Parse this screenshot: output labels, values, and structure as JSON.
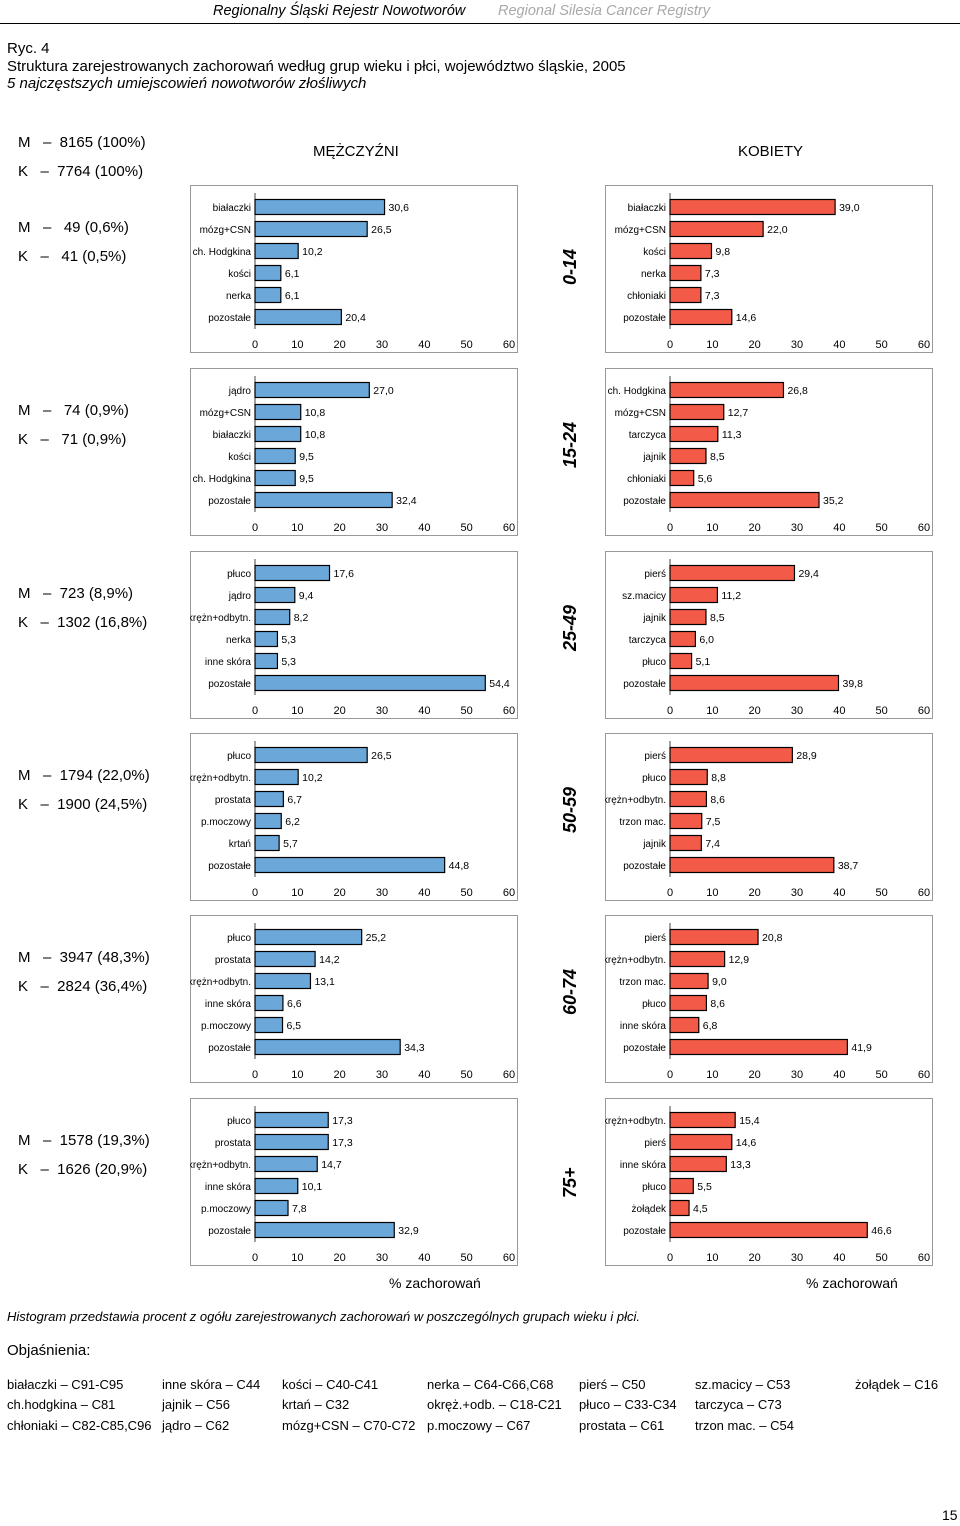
{
  "header": {
    "title_pl": "Regionalny Śląski Rejestr Nowotworów",
    "title_en": "Regional Silesia Cancer Registry"
  },
  "figure": {
    "number": "Ryc. 4",
    "title": "Struktura zarejestrowanych zachorowań według grup wieku i płci, województwo śląskie, 2005",
    "subtitle": "5 najczęstszych umiejscowień nowotworów złośliwych"
  },
  "totals": {
    "m": "M   –  8165 (100%)",
    "k": "K   –  7764 (100%)"
  },
  "columns": {
    "men": "MĘŻCZYŹNI",
    "women": "KOBIETY"
  },
  "axis": {
    "ticks": [
      "0",
      "10",
      "20",
      "30",
      "40",
      "50",
      "60"
    ],
    "xlabel": "% zachorowań"
  },
  "colors": {
    "men_bar": "#6ba7d9",
    "women_bar": "#f35a48"
  },
  "chart_data": [
    {
      "group": "0-14",
      "m_count": "M   –   49 (0,6%)",
      "k_count": "K   –   41 (0,5%)",
      "men": {
        "type": "bar",
        "xlim": [
          0,
          60
        ],
        "categories": [
          "białaczki",
          "mózg+CSN",
          "ch. Hodgkina",
          "kości",
          "nerka",
          "pozostałe"
        ],
        "values": [
          30.6,
          26.5,
          10.2,
          6.1,
          6.1,
          20.4
        ],
        "labels": [
          "30,6",
          "26,5",
          "10,2",
          "6,1",
          "6,1",
          "20,4"
        ]
      },
      "women": {
        "type": "bar",
        "xlim": [
          0,
          60
        ],
        "categories": [
          "białaczki",
          "mózg+CSN",
          "kości",
          "nerka",
          "chłoniaki",
          "pozostałe"
        ],
        "values": [
          39.0,
          22.0,
          9.8,
          7.3,
          7.3,
          14.6
        ],
        "labels": [
          "39,0",
          "22,0",
          "9,8",
          "7,3",
          "7,3",
          "14,6"
        ]
      }
    },
    {
      "group": "15-24",
      "m_count": "M   –   74 (0,9%)",
      "k_count": "K   –   71 (0,9%)",
      "men": {
        "type": "bar",
        "xlim": [
          0,
          60
        ],
        "categories": [
          "jądro",
          "mózg+CSN",
          "białaczki",
          "kości",
          "ch. Hodgkina",
          "pozostałe"
        ],
        "values": [
          27.0,
          10.8,
          10.8,
          9.5,
          9.5,
          32.4
        ],
        "labels": [
          "27,0",
          "10,8",
          "10,8",
          "9,5",
          "9,5",
          "32,4"
        ]
      },
      "women": {
        "type": "bar",
        "xlim": [
          0,
          60
        ],
        "categories": [
          "ch. Hodgkina",
          "mózg+CSN",
          "tarczyca",
          "jajnik",
          "chłoniaki",
          "pozostałe"
        ],
        "values": [
          26.8,
          12.7,
          11.3,
          8.5,
          5.6,
          35.2
        ],
        "labels": [
          "26,8",
          "12,7",
          "11,3",
          "8,5",
          "5,6",
          "35,2"
        ]
      }
    },
    {
      "group": "25-49",
      "m_count": "M   –  723 (8,9%)",
      "k_count": "K   –  1302 (16,8%)",
      "men": {
        "type": "bar",
        "xlim": [
          0,
          60
        ],
        "categories": [
          "płuco",
          "jądro",
          "okrężn+odbytn.",
          "nerka",
          "inne skóra",
          "pozostałe"
        ],
        "values": [
          17.6,
          9.4,
          8.2,
          5.3,
          5.3,
          54.4
        ],
        "labels": [
          "17,6",
          "9,4",
          "8,2",
          "5,3",
          "5,3",
          "54,4"
        ]
      },
      "women": {
        "type": "bar",
        "xlim": [
          0,
          60
        ],
        "categories": [
          "pierś",
          "sz.macicy",
          "jajnik",
          "tarczyca",
          "płuco",
          "pozostałe"
        ],
        "values": [
          29.4,
          11.2,
          8.5,
          6.0,
          5.1,
          39.8
        ],
        "labels": [
          "29,4",
          "11,2",
          "8,5",
          "6,0",
          "5,1",
          "39,8"
        ]
      }
    },
    {
      "group": "50-59",
      "m_count": "M   –  1794 (22,0%)",
      "k_count": "K   –  1900 (24,5%)",
      "men": {
        "type": "bar",
        "xlim": [
          0,
          60
        ],
        "categories": [
          "płuco",
          "okrężn+odbytn.",
          "prostata",
          "p.moczowy",
          "krtań",
          "pozostałe"
        ],
        "values": [
          26.5,
          10.2,
          6.7,
          6.2,
          5.7,
          44.8
        ],
        "labels": [
          "26,5",
          "10,2",
          "6,7",
          "6,2",
          "5,7",
          "44,8"
        ]
      },
      "women": {
        "type": "bar",
        "xlim": [
          0,
          60
        ],
        "categories": [
          "pierś",
          "płuco",
          "okrężn+odbytn.",
          "trzon mac.",
          "jajnik",
          "pozostałe"
        ],
        "values": [
          28.9,
          8.8,
          8.6,
          7.5,
          7.4,
          38.7
        ],
        "labels": [
          "28,9",
          "8,8",
          "8,6",
          "7,5",
          "7,4",
          "38,7"
        ]
      }
    },
    {
      "group": "60-74",
      "m_count": "M   –  3947 (48,3%)",
      "k_count": "K   –  2824 (36,4%)",
      "men": {
        "type": "bar",
        "xlim": [
          0,
          60
        ],
        "categories": [
          "płuco",
          "prostata",
          "okrężn+odbytn.",
          "inne skóra",
          "p.moczowy",
          "pozostałe"
        ],
        "values": [
          25.2,
          14.2,
          13.1,
          6.6,
          6.5,
          34.3
        ],
        "labels": [
          "25,2",
          "14,2",
          "13,1",
          "6,6",
          "6,5",
          "34,3"
        ]
      },
      "women": {
        "type": "bar",
        "xlim": [
          0,
          60
        ],
        "categories": [
          "pierś",
          "okrężn+odbytn.",
          "trzon mac.",
          "płuco",
          "inne skóra",
          "pozostałe"
        ],
        "values": [
          20.8,
          12.9,
          9.0,
          8.6,
          6.8,
          41.9
        ],
        "labels": [
          "20,8",
          "12,9",
          "9,0",
          "8,6",
          "6,8",
          "41,9"
        ]
      }
    },
    {
      "group": "75+",
      "m_count": "M   –  1578 (19,3%)",
      "k_count": "K   –  1626 (20,9%)",
      "men": {
        "type": "bar",
        "xlim": [
          0,
          60
        ],
        "categories": [
          "płuco",
          "prostata",
          "okrężn+odbytn.",
          "inne skóra",
          "p.moczowy",
          "pozostałe"
        ],
        "values": [
          17.3,
          17.3,
          14.7,
          10.1,
          7.8,
          32.9
        ],
        "labels": [
          "17,3",
          "17,3",
          "14,7",
          "10,1",
          "7,8",
          "32,9"
        ]
      },
      "women": {
        "type": "bar",
        "xlim": [
          0,
          60
        ],
        "categories": [
          "okrężn+odbytn.",
          "pierś",
          "inne skóra",
          "płuco",
          "żołądek",
          "pozostałe"
        ],
        "values": [
          15.4,
          14.6,
          13.3,
          5.5,
          4.5,
          46.6
        ],
        "labels": [
          "15,4",
          "14,6",
          "13,3",
          "5,5",
          "4,5",
          "46,6"
        ]
      }
    }
  ],
  "note": "Histogram przedstawia procent z ogółu zarejestrowanych zachorowań w poszczególnych grupach wieku i płci.",
  "explanations_title": "Objaśnienia:",
  "legend": [
    [
      "białaczki – C91-C95",
      "ch.hodgkina – C81",
      "chłoniaki – C82-C85,C96"
    ],
    [
      "inne skóra – C44",
      "jajnik – C56",
      "jądro – C62"
    ],
    [
      "kości – C40-C41",
      "krtań – C32",
      "mózg+CSN – C70-C72"
    ],
    [
      "nerka – C64-C66,C68",
      "okręż.+odb. – C18-C21",
      "p.moczowy – C67"
    ],
    [
      "pierś – C50",
      "płuco – C33-C34",
      "prostata – C61"
    ],
    [
      "sz.macicy – C53",
      "tarczyca – C73",
      "trzon mac. – C54"
    ],
    [
      "żołądek – C16"
    ]
  ],
  "page_number": "15"
}
